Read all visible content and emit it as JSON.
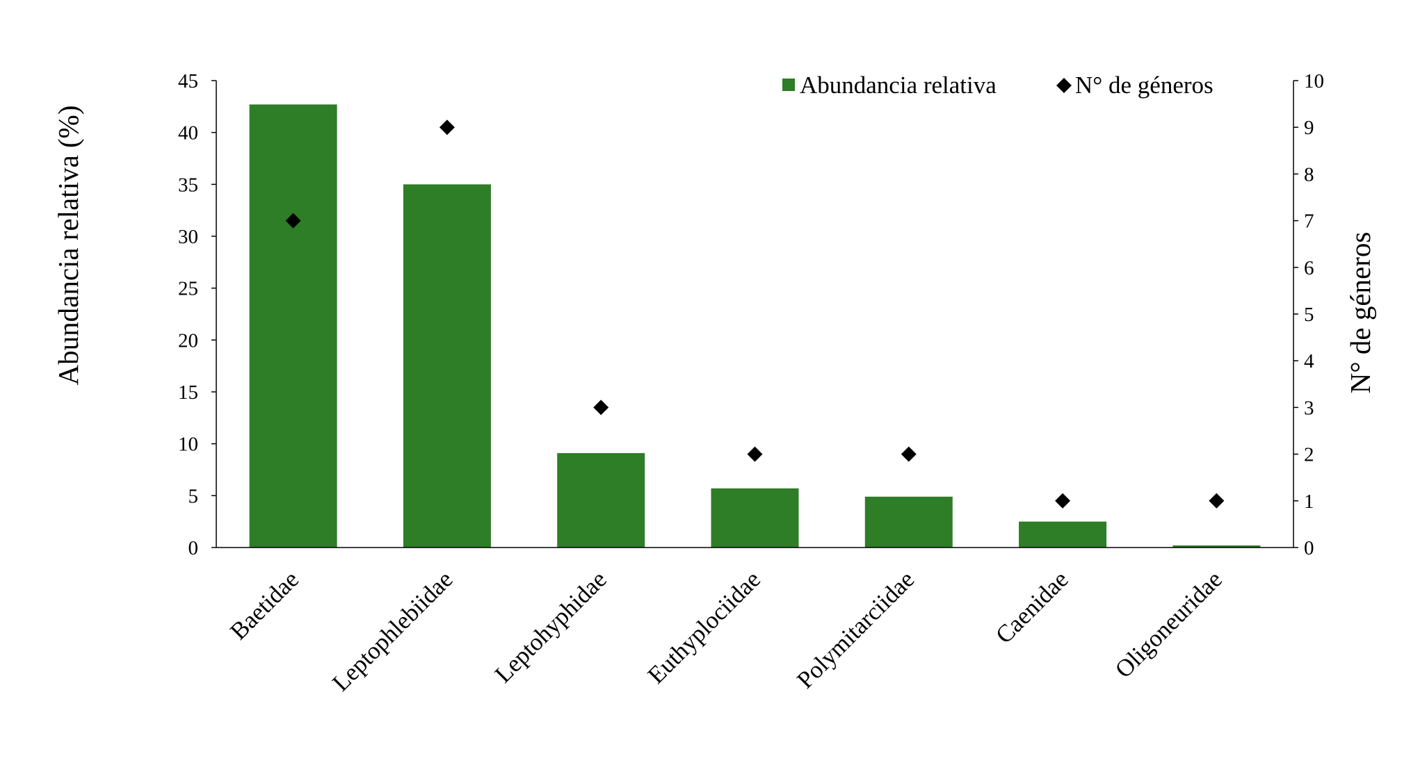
{
  "chart_data": {
    "type": "bar",
    "categories": [
      "Baetidae",
      "Leptophlebiidae",
      "Leptohyphidae",
      "Euthyplociidae",
      "Polymitarciidae",
      "Caenidae",
      "Oligoneuridae"
    ],
    "series": [
      {
        "name": "Abundancia relativa",
        "kind": "bar",
        "axis": "left",
        "color": "#2e7d27",
        "values": [
          42.7,
          35.0,
          9.1,
          5.7,
          4.9,
          2.5,
          0.2
        ]
      },
      {
        "name": "N° de géneros",
        "kind": "scatter",
        "marker": "diamond",
        "axis": "right",
        "color": "#000000",
        "values": [
          7,
          9,
          3,
          2,
          2,
          1,
          1
        ]
      }
    ],
    "ylabel": "Abundancia relativa (%)",
    "y2label": "N° de géneros",
    "ylim": [
      0,
      45
    ],
    "y2lim": [
      0,
      10
    ],
    "yticks": [
      "0",
      "5",
      "10",
      "15",
      "20",
      "25",
      "30",
      "35",
      "40",
      "45"
    ],
    "y2ticks": [
      "0",
      "1",
      "2",
      "3",
      "4",
      "5",
      "6",
      "7",
      "8",
      "9",
      "10"
    ],
    "legend": {
      "position": "top-right",
      "items": [
        "Abundancia relativa",
        "N° de géneros"
      ]
    },
    "grid": false
  }
}
